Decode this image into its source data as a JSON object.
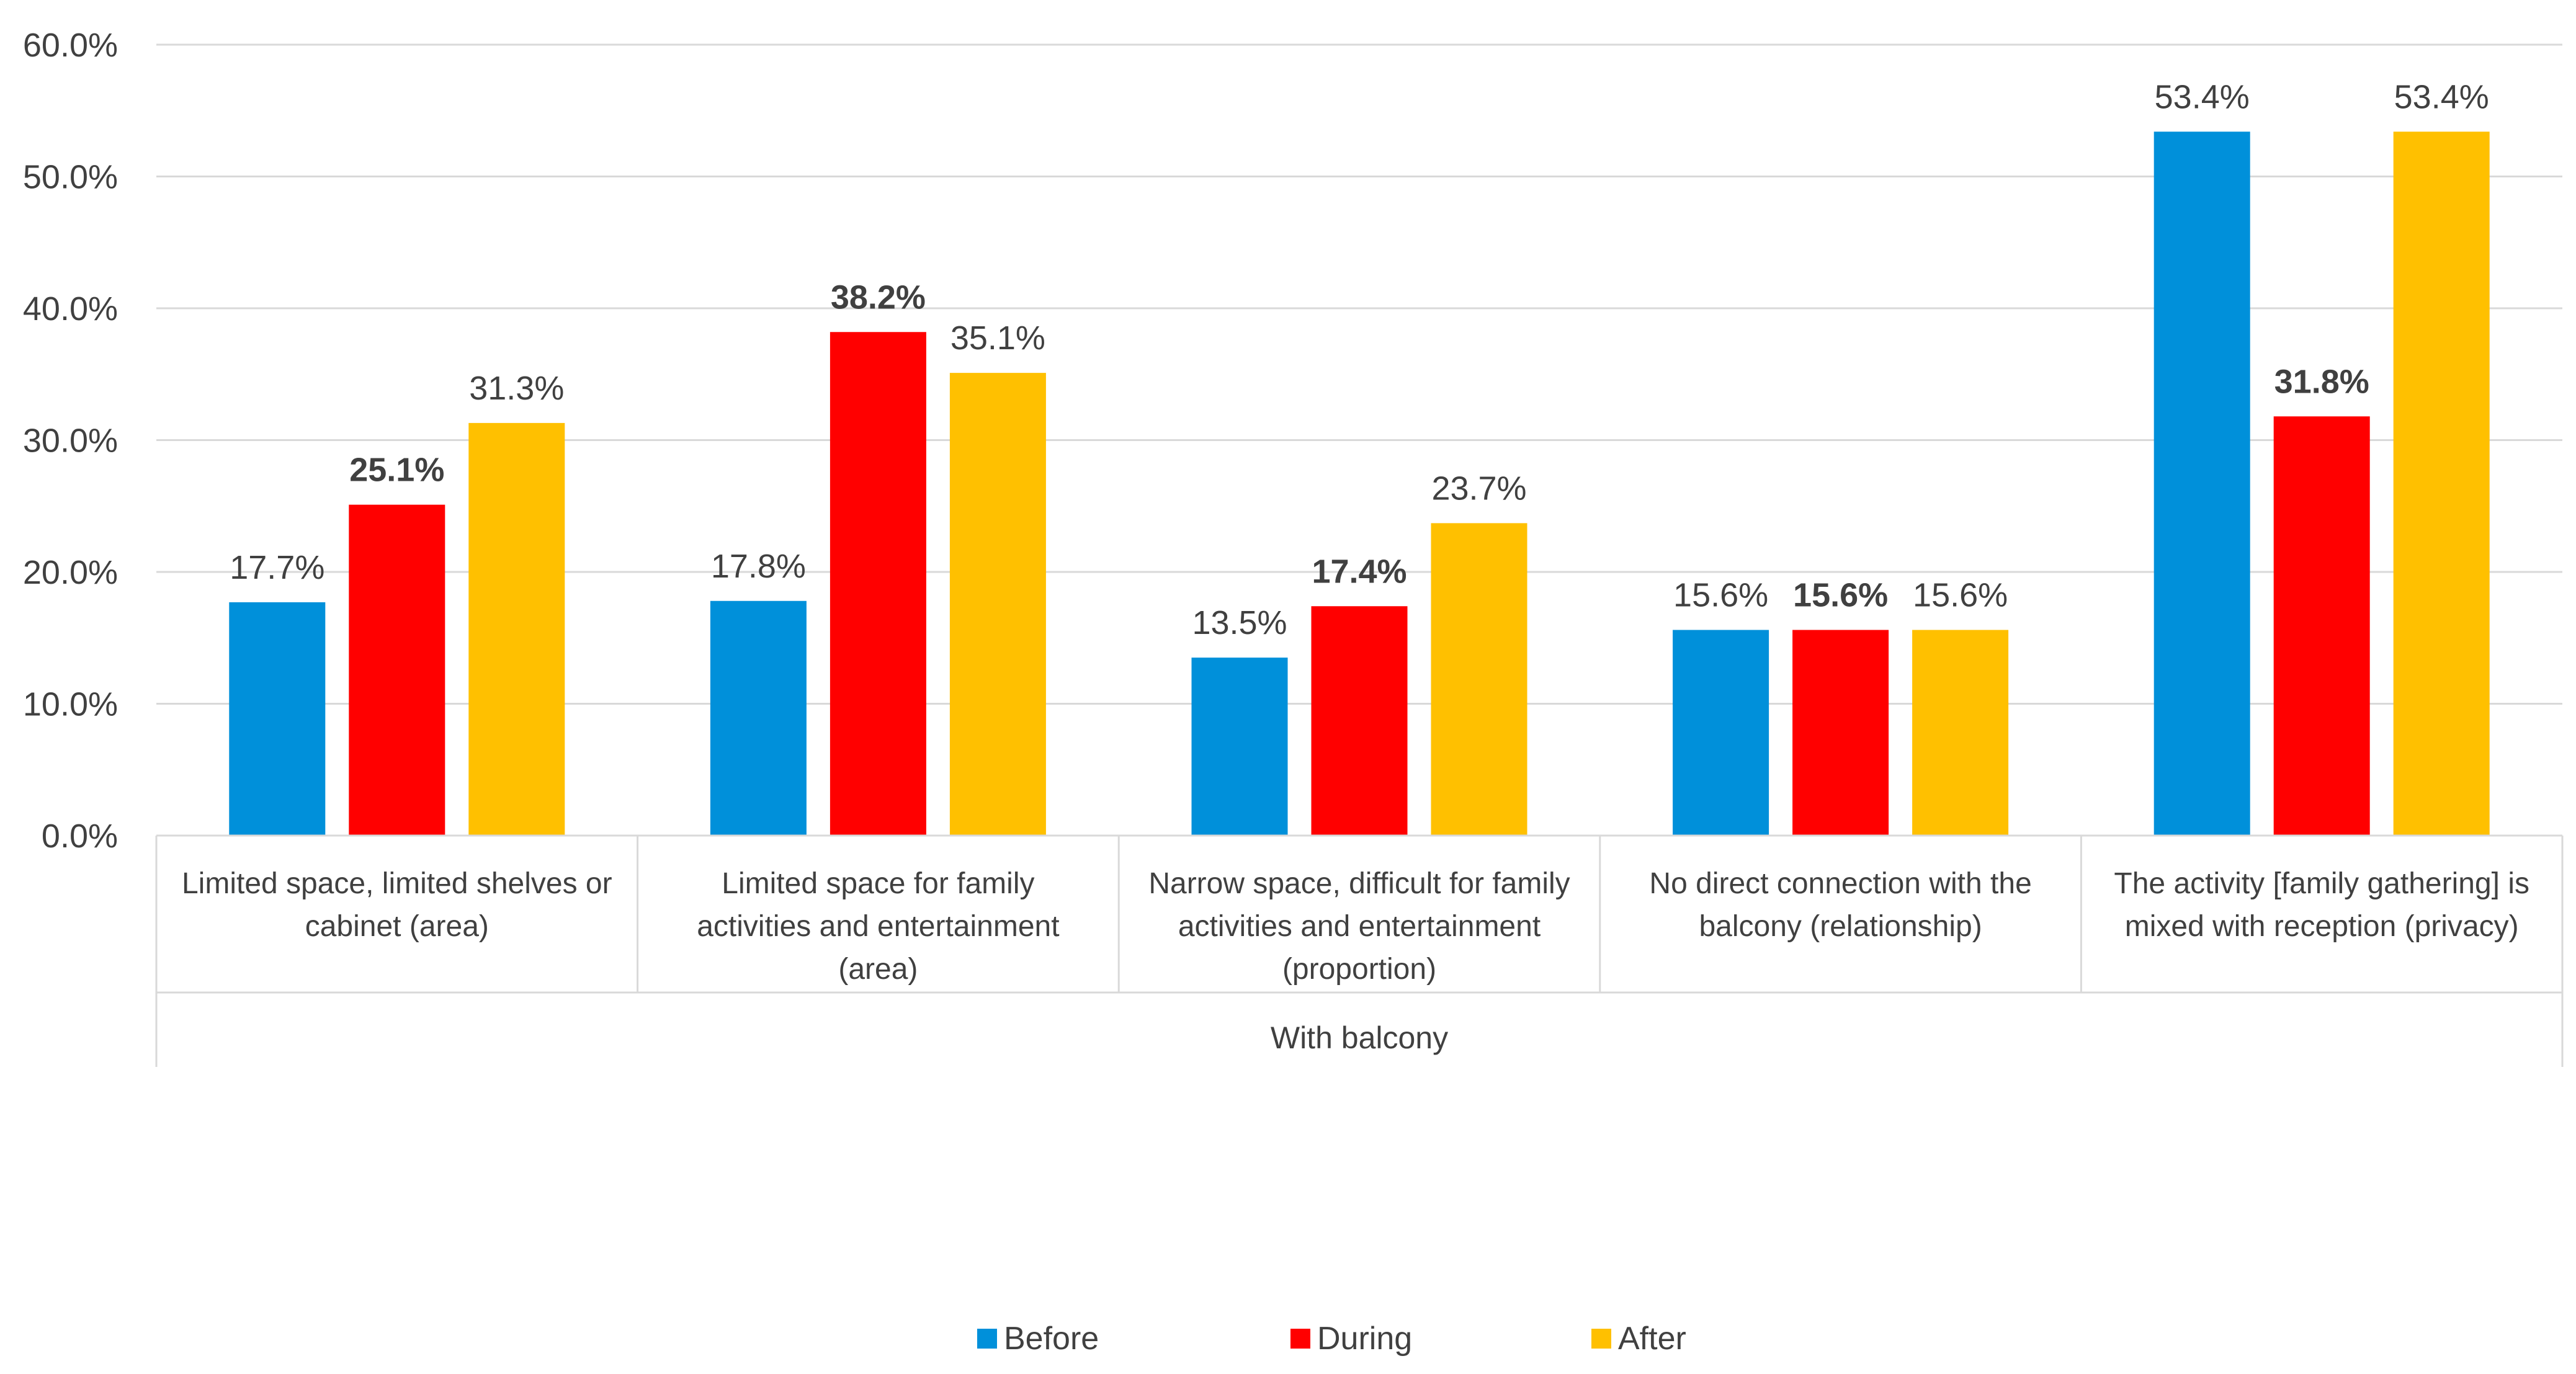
{
  "chart_data": {
    "type": "bar",
    "title": "",
    "xlabel": "",
    "ylabel": "",
    "ylim": [
      0,
      60
    ],
    "yticks": [
      "0.0%",
      "10.0%",
      "20.0%",
      "30.0%",
      "40.0%",
      "50.0%",
      "60.0%"
    ],
    "group_label": "With balcony",
    "categories": [
      [
        "Limited space, limited shelves or",
        "cabinet (area)"
      ],
      [
        "Limited space for family",
        "activities and entertainment",
        "(area)"
      ],
      [
        "Narrow space, difficult for family",
        "activities and entertainment",
        "(proportion)"
      ],
      [
        "No direct connection with the",
        "balcony (relationship)"
      ],
      [
        "The activity [family gathering] is",
        "mixed with reception (privacy)"
      ]
    ],
    "series": [
      {
        "name": "Before",
        "color": "#0090DA",
        "values": [
          17.7,
          17.8,
          13.5,
          15.6,
          53.4
        ],
        "labels": [
          "17.7%",
          "17.8%",
          "13.5%",
          "15.6%",
          "53.4%"
        ],
        "bold_labels": false
      },
      {
        "name": "During",
        "color": "#FF0000",
        "values": [
          25.1,
          38.2,
          17.4,
          15.6,
          31.8
        ],
        "labels": [
          "25.1%",
          "38.2%",
          "17.4%",
          "15.6%",
          "31.8%"
        ],
        "bold_labels": true
      },
      {
        "name": "After",
        "color": "#FFC000",
        "values": [
          31.3,
          35.1,
          23.7,
          15.6,
          53.4
        ],
        "labels": [
          "31.3%",
          "35.1%",
          "23.7%",
          "15.6%",
          "53.4%"
        ],
        "bold_labels": false
      }
    ],
    "grid": true,
    "legend_position": "bottom"
  }
}
